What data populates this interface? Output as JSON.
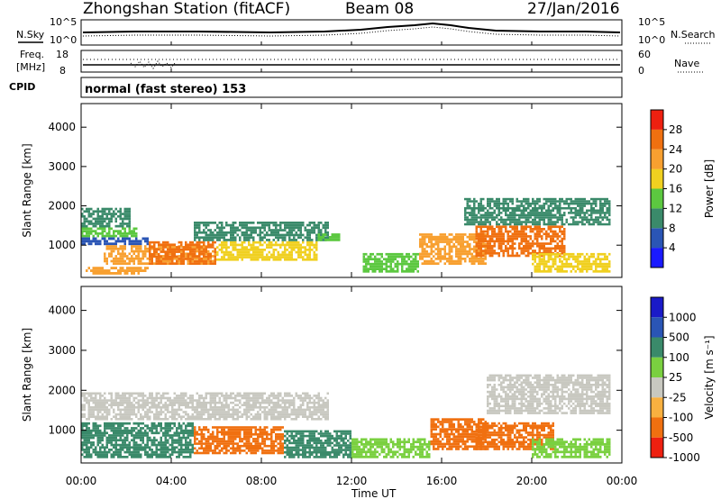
{
  "header": {
    "station": "Zhongshan Station (fitACF)",
    "beam": "Beam 08",
    "date": "27/Jan/2016"
  },
  "top_panels": {
    "nsky_label": "N.Sky",
    "nsearch_label": "N.Search",
    "freq_label_1": "Freq.",
    "freq_label_2": "[MHz]",
    "nave_label": "Nave",
    "cpid_label": "CPID",
    "cpid_value": "normal (fast stereo) 153",
    "left_ticks": [
      "10^5",
      "10^0",
      "18",
      "8"
    ],
    "right_ticks": [
      "10^5",
      "10^0",
      "60",
      "0"
    ]
  },
  "axes": {
    "ylabel": "Slant Range [km]",
    "xlabel": "Time UT",
    "x_ticks": [
      "00:00",
      "04:00",
      "08:00",
      "12:00",
      "16:00",
      "20:00",
      "00:00"
    ],
    "y_ticks": [
      "1000",
      "2000",
      "3000",
      "4000"
    ]
  },
  "colorbars": {
    "power_label": "Power [dB]",
    "power_ticks": [
      "4",
      "8",
      "12",
      "16",
      "20",
      "24",
      "28"
    ],
    "power_colors": [
      "#1a1aff",
      "#2a55b5",
      "#3a8a6a",
      "#5cc840",
      "#f0d020",
      "#f8a030",
      "#f07010",
      "#ee2010"
    ],
    "velocity_label": "Velocity [m s⁻¹]",
    "velocity_ticks": [
      "1000",
      "500",
      "100",
      "25",
      "-25",
      "-100",
      "-500",
      "-1000"
    ],
    "velocity_colors": [
      "#1a1ac8",
      "#2a55b5",
      "#3a8a6a",
      "#7ad040",
      "#c8c8c0",
      "#f8b040",
      "#f07010",
      "#ee2010"
    ]
  },
  "chart_data": [
    {
      "type": "heatmap",
      "title": "Power",
      "xlabel": "Time UT",
      "ylabel": "Slant Range [km]",
      "xlim_hours": [
        0,
        24
      ],
      "ylim_km": [
        180,
        4600
      ],
      "colorbar": "Power [dB]",
      "regions": [
        {
          "t0": 0.0,
          "t1": 2.2,
          "r0": 1450,
          "r1": 1950,
          "value_db": 10
        },
        {
          "t0": 0.0,
          "t1": 2.5,
          "r0": 1200,
          "r1": 1450,
          "value_db": 14
        },
        {
          "t0": 0.0,
          "t1": 3.0,
          "r0": 1000,
          "r1": 1200,
          "value_db": 6
        },
        {
          "t0": 0.2,
          "t1": 3.0,
          "r0": 250,
          "r1": 450,
          "value_db": 22
        },
        {
          "t0": 1.0,
          "t1": 6.0,
          "r0": 500,
          "r1": 1000,
          "value_db": 20
        },
        {
          "t0": 3.0,
          "t1": 6.0,
          "r0": 500,
          "r1": 1100,
          "value_db": 26
        },
        {
          "t0": 6.0,
          "t1": 10.5,
          "r0": 600,
          "r1": 1100,
          "value_db": 18
        },
        {
          "t0": 5.0,
          "t1": 11.0,
          "r0": 1100,
          "r1": 1600,
          "value_db": 8
        },
        {
          "t0": 10.5,
          "t1": 11.5,
          "r0": 1100,
          "r1": 1300,
          "value_db": 12
        },
        {
          "t0": 12.5,
          "t1": 15.0,
          "r0": 300,
          "r1": 800,
          "value_db": 14
        },
        {
          "t0": 15.0,
          "t1": 18.0,
          "r0": 500,
          "r1": 1300,
          "value_db": 22
        },
        {
          "t0": 17.5,
          "t1": 21.5,
          "r0": 700,
          "r1": 1500,
          "value_db": 27
        },
        {
          "t0": 17.0,
          "t1": 23.5,
          "r0": 1500,
          "r1": 2200,
          "value_db": 10
        },
        {
          "t0": 20.0,
          "t1": 23.5,
          "r0": 300,
          "r1": 800,
          "value_db": 18
        }
      ]
    },
    {
      "type": "heatmap",
      "title": "Velocity",
      "xlabel": "Time UT",
      "ylabel": "Slant Range [km]",
      "xlim_hours": [
        0,
        24
      ],
      "ylim_km": [
        180,
        4600
      ],
      "colorbar": "Velocity [m s⁻¹]",
      "regions": [
        {
          "t0": 0.0,
          "t1": 11.0,
          "r0": 1250,
          "r1": 1950,
          "value_ms": 0
        },
        {
          "t0": 0.0,
          "t1": 5.0,
          "r0": 300,
          "r1": 1200,
          "value_ms": 150
        },
        {
          "t0": 5.0,
          "t1": 9.0,
          "r0": 400,
          "r1": 1100,
          "value_ms": -200
        },
        {
          "t0": 9.0,
          "t1": 12.0,
          "r0": 300,
          "r1": 1000,
          "value_ms": 100
        },
        {
          "t0": 12.0,
          "t1": 15.5,
          "r0": 300,
          "r1": 800,
          "value_ms": 60
        },
        {
          "t0": 15.5,
          "t1": 18.0,
          "r0": 500,
          "r1": 1300,
          "value_ms": -250
        },
        {
          "t0": 17.5,
          "t1": 21.0,
          "r0": 500,
          "r1": 1200,
          "value_ms": -120
        },
        {
          "t0": 18.0,
          "t1": 23.5,
          "r0": 1400,
          "r1": 2400,
          "value_ms": 0
        },
        {
          "t0": 20.0,
          "t1": 23.5,
          "r0": 300,
          "r1": 800,
          "value_ms": 80
        }
      ]
    }
  ]
}
